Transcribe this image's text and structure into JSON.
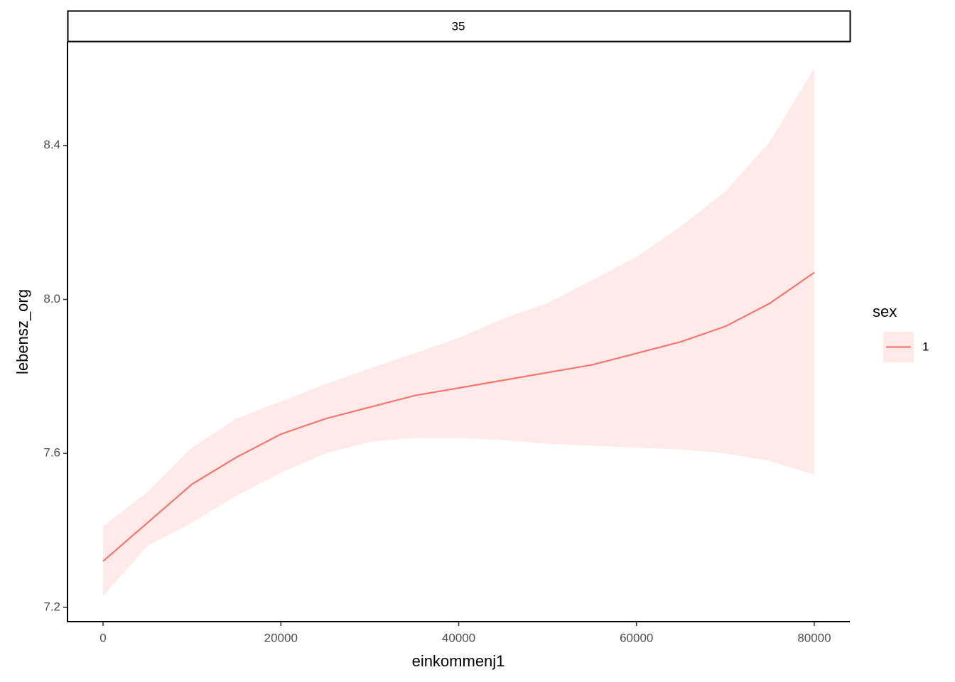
{
  "chart_data": {
    "type": "line",
    "facet_label": "35",
    "x_label": "einkommenj1",
    "y_label": "lebensz_org",
    "legend_title": "sex",
    "x": [
      0,
      5000,
      10000,
      15000,
      20000,
      25000,
      30000,
      35000,
      40000,
      45000,
      50000,
      55000,
      60000,
      65000,
      70000,
      75000,
      80000
    ],
    "series": [
      {
        "name": "1",
        "color": "#F8766D",
        "values": [
          7.32,
          7.42,
          7.52,
          7.59,
          7.65,
          7.69,
          7.72,
          7.75,
          7.77,
          7.79,
          7.81,
          7.83,
          7.86,
          7.89,
          7.93,
          7.99,
          8.07
        ],
        "lower": [
          7.23,
          7.36,
          7.42,
          7.49,
          7.55,
          7.6,
          7.63,
          7.64,
          7.64,
          7.635,
          7.625,
          7.62,
          7.615,
          7.61,
          7.6,
          7.58,
          7.545
        ],
        "upper": [
          7.41,
          7.5,
          7.615,
          7.69,
          7.735,
          7.78,
          7.82,
          7.86,
          7.9,
          7.95,
          7.99,
          8.05,
          8.11,
          8.19,
          8.28,
          8.41,
          8.6
        ]
      }
    ],
    "xlim": [
      -4000,
      84000
    ],
    "ylim": [
      7.163,
      8.669
    ],
    "xticks": [
      0,
      20000,
      40000,
      60000,
      80000
    ],
    "yticks": [
      {
        "value": 7.2,
        "label": "7.2"
      },
      {
        "value": 7.6,
        "label": "7.6"
      },
      {
        "value": 8.0,
        "label": "8.0"
      },
      {
        "value": 8.4,
        "label": "8.4"
      }
    ],
    "ribbon_opacity": 0.15
  }
}
